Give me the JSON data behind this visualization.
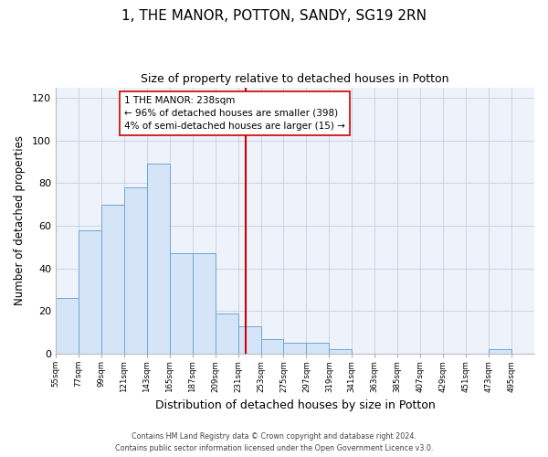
{
  "title": "1, THE MANOR, POTTON, SANDY, SG19 2RN",
  "subtitle": "Size of property relative to detached houses in Potton",
  "xlabel": "Distribution of detached houses by size in Potton",
  "ylabel": "Number of detached properties",
  "bar_color": "#d6e4f7",
  "bar_edge_color": "#6aaad4",
  "bin_starts": [
    55,
    77,
    99,
    121,
    143,
    165,
    187,
    209,
    231,
    253,
    275,
    297,
    319,
    341,
    363,
    385,
    407,
    429,
    451,
    473,
    495
  ],
  "bin_width": 22,
  "bar_heights": [
    26,
    58,
    70,
    78,
    89,
    47,
    47,
    19,
    13,
    7,
    5,
    5,
    2,
    0,
    0,
    0,
    0,
    0,
    0,
    2,
    0
  ],
  "vline_x": 238,
  "vline_color": "#cc0000",
  "annotation_text": "1 THE MANOR: 238sqm\n← 96% of detached houses are smaller (398)\n4% of semi-detached houses are larger (15) →",
  "annotation_box_color": "#ffffff",
  "annotation_box_edge": "#cc0000",
  "ylim": [
    0,
    125
  ],
  "yticks": [
    0,
    20,
    40,
    60,
    80,
    100,
    120
  ],
  "tick_labels": [
    "55sqm",
    "77sqm",
    "99sqm",
    "121sqm",
    "143sqm",
    "165sqm",
    "187sqm",
    "209sqm",
    "231sqm",
    "253sqm",
    "275sqm",
    "297sqm",
    "319sqm",
    "341sqm",
    "363sqm",
    "385sqm",
    "407sqm",
    "429sqm",
    "451sqm",
    "473sqm",
    "495sqm"
  ],
  "footer_line1": "Contains HM Land Registry data © Crown copyright and database right 2024.",
  "footer_line2": "Contains public sector information licensed under the Open Government Licence v3.0.",
  "background_color": "#ffffff",
  "plot_background_color": "#eef2fa"
}
